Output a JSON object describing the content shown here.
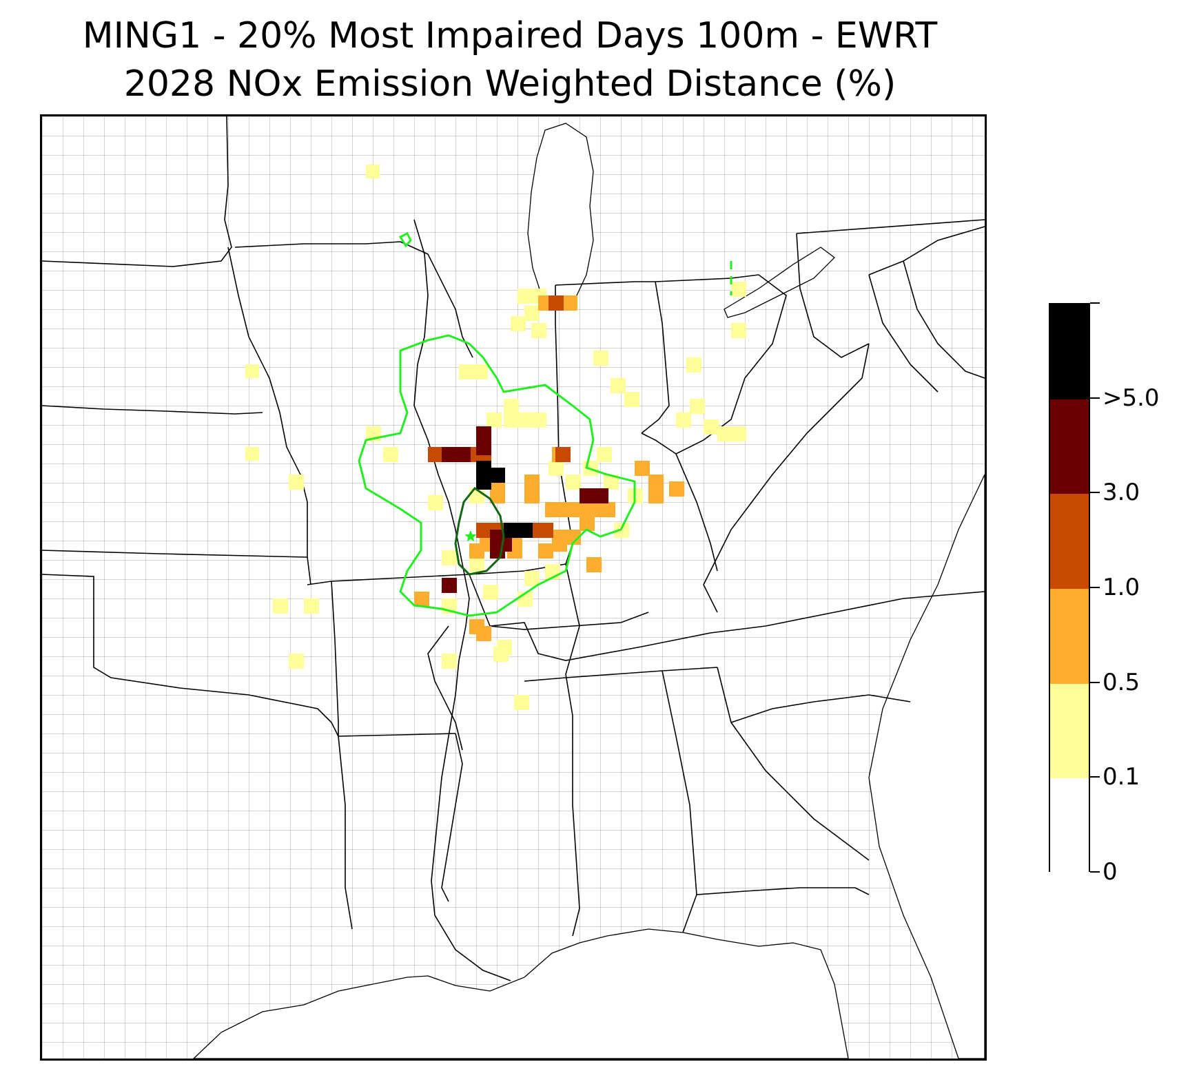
{
  "title": {
    "line1": "MING1 - 20% Most Impaired Days 100m - EWRT",
    "line2": "2028 NOx Emission Weighted Distance (%)"
  },
  "colorbar": {
    "labels": [
      "0",
      "0.1",
      "0.5",
      "1.0",
      "3.0",
      ">5.0"
    ],
    "segments": [
      {
        "color": "#ffffff"
      },
      {
        "color": "#ffff99"
      },
      {
        "color": "#fdae2f"
      },
      {
        "color": "#c84a00"
      },
      {
        "color": "#6b0000"
      },
      {
        "color": "#000000"
      }
    ]
  },
  "map": {
    "background_color": "#ffffff",
    "county_line_color": "#999999",
    "state_line_color": "#000000",
    "contour_outer_color": "#22ee22",
    "contour_inner_color": "#116611",
    "site_marker": "star-icon"
  }
}
